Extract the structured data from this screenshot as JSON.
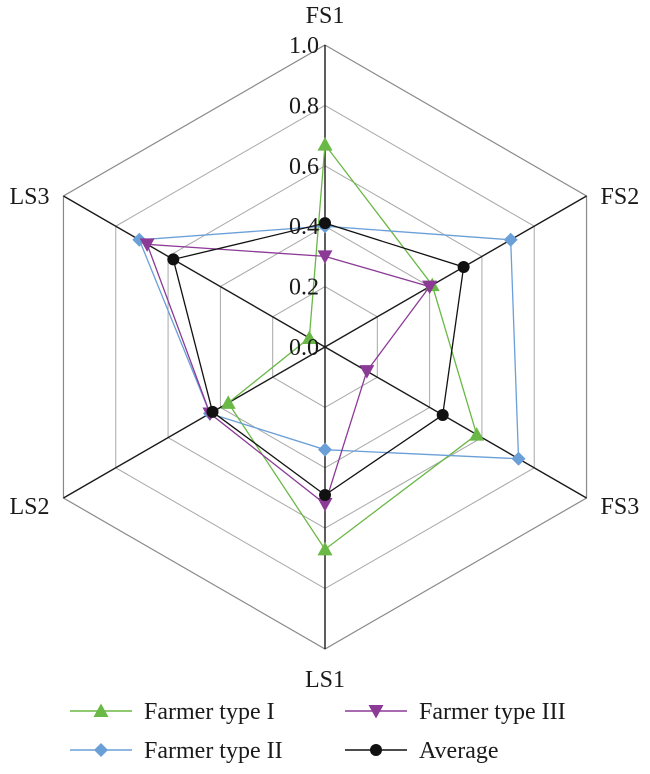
{
  "chart_data": {
    "type": "radar",
    "axes": [
      "FS1",
      "FS2",
      "FS3",
      "LS1",
      "LS2",
      "LS3"
    ],
    "rlim": [
      0.0,
      1.0
    ],
    "ticks": [
      "0.0",
      "0.2",
      "0.4",
      "0.6",
      "0.8",
      "1.0"
    ],
    "tick_values": [
      0.0,
      0.2,
      0.4,
      0.6,
      0.8,
      1.0
    ],
    "grid": true,
    "legend_position": "bottom",
    "series": [
      {
        "name": "Farmer type I",
        "color": "#6ab845",
        "marker": "triangle-up",
        "values": [
          0.67,
          0.41,
          0.58,
          0.67,
          0.37,
          0.06
        ]
      },
      {
        "name": "Farmer type II",
        "color": "#6a9fd8",
        "marker": "diamond",
        "values": [
          0.4,
          0.71,
          0.74,
          0.34,
          0.44,
          0.71
        ]
      },
      {
        "name": "Farmer type III",
        "color": "#8b3a96",
        "marker": "triangle-down",
        "values": [
          0.3,
          0.4,
          0.16,
          0.52,
          0.44,
          0.68
        ]
      },
      {
        "name": "Average",
        "color": "#111111",
        "marker": "circle",
        "values": [
          0.41,
          0.53,
          0.45,
          0.49,
          0.43,
          0.58
        ]
      }
    ]
  }
}
